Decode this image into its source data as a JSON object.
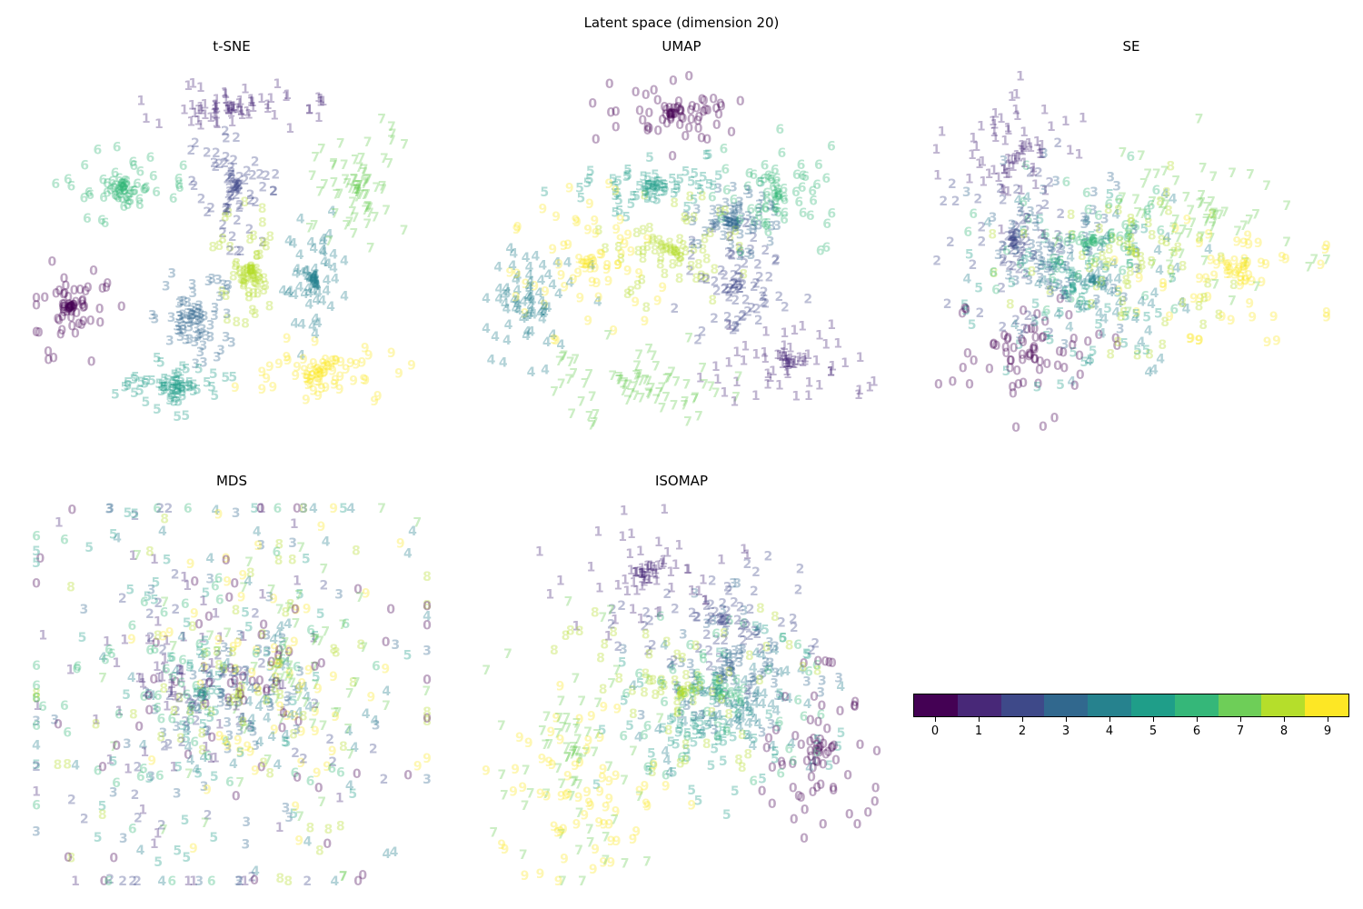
{
  "suptitle": "Latent space (dimension 20)",
  "colormap": "viridis",
  "class_colors": [
    "#440154",
    "#482878",
    "#3e4989",
    "#31688e",
    "#26828e",
    "#1f9e89",
    "#35b779",
    "#6ece58",
    "#b5de2b",
    "#fde725"
  ],
  "marker_alpha": 0.35,
  "colorbar": {
    "tick_labels": [
      "0",
      "1",
      "2",
      "3",
      "4",
      "5",
      "6",
      "7",
      "8",
      "9"
    ]
  },
  "chart_data": [
    {
      "type": "scatter",
      "title": "t-SNE",
      "xlabel": "",
      "ylabel": "",
      "axes_visible": false,
      "marker": "digit glyph",
      "clusters": [
        {
          "label": "0",
          "x": -0.82,
          "y": -0.25,
          "rx": 0.16,
          "ry": 0.2
        },
        {
          "label": "1",
          "x": 0.0,
          "y": 0.82,
          "rx": 0.3,
          "ry": 0.09
        },
        {
          "label": "2",
          "x": 0.02,
          "y": 0.4,
          "rx": 0.17,
          "ry": 0.22
        },
        {
          "label": "3",
          "x": -0.2,
          "y": -0.3,
          "rx": 0.15,
          "ry": 0.16
        },
        {
          "label": "4",
          "x": 0.42,
          "y": -0.1,
          "rx": 0.1,
          "ry": 0.28
        },
        {
          "label": "5",
          "x": -0.3,
          "y": -0.68,
          "rx": 0.24,
          "ry": 0.1
        },
        {
          "label": "6",
          "x": -0.55,
          "y": 0.4,
          "rx": 0.22,
          "ry": 0.13
        },
        {
          "label": "7",
          "x": 0.65,
          "y": 0.38,
          "rx": 0.18,
          "ry": 0.26
        },
        {
          "label": "8",
          "x": 0.1,
          "y": -0.05,
          "rx": 0.13,
          "ry": 0.23
        },
        {
          "label": "9",
          "x": 0.45,
          "y": -0.6,
          "rx": 0.3,
          "ry": 0.12
        }
      ]
    },
    {
      "type": "scatter",
      "title": "UMAP",
      "xlabel": "",
      "ylabel": "",
      "axes_visible": false,
      "marker": "digit glyph",
      "clusters": [
        {
          "label": "0",
          "x": -0.05,
          "y": 0.78,
          "rx": 0.3,
          "ry": 0.14
        },
        {
          "label": "1",
          "x": 0.55,
          "y": -0.55,
          "rx": 0.3,
          "ry": 0.16
        },
        {
          "label": "2",
          "x": 0.3,
          "y": -0.15,
          "rx": 0.22,
          "ry": 0.22
        },
        {
          "label": "3",
          "x": 0.25,
          "y": 0.2,
          "rx": 0.15,
          "ry": 0.12
        },
        {
          "label": "4",
          "x": -0.78,
          "y": -0.2,
          "rx": 0.22,
          "ry": 0.25
        },
        {
          "label": "5",
          "x": -0.15,
          "y": 0.4,
          "rx": 0.35,
          "ry": 0.12
        },
        {
          "label": "6",
          "x": 0.5,
          "y": 0.35,
          "rx": 0.25,
          "ry": 0.22
        },
        {
          "label": "7",
          "x": -0.18,
          "y": -0.65,
          "rx": 0.3,
          "ry": 0.18
        },
        {
          "label": "8",
          "x": -0.05,
          "y": 0.05,
          "rx": 0.25,
          "ry": 0.2
        },
        {
          "label": "9",
          "x": -0.48,
          "y": -0.02,
          "rx": 0.25,
          "ry": 0.28
        }
      ]
    },
    {
      "type": "scatter",
      "title": "SE",
      "xlabel": "",
      "ylabel": "",
      "axes_visible": false,
      "marker": "digit glyph",
      "clusters": [
        {
          "label": "0",
          "x": -0.55,
          "y": -0.5,
          "rx": 0.3,
          "ry": 0.25
        },
        {
          "label": "1",
          "x": -0.6,
          "y": 0.55,
          "rx": 0.25,
          "ry": 0.28
        },
        {
          "label": "2",
          "x": -0.6,
          "y": 0.1,
          "rx": 0.25,
          "ry": 0.4
        },
        {
          "label": "3",
          "x": -0.45,
          "y": 0.0,
          "rx": 0.3,
          "ry": 0.4
        },
        {
          "label": "4",
          "x": -0.2,
          "y": -0.1,
          "rx": 0.4,
          "ry": 0.35
        },
        {
          "label": "5",
          "x": -0.3,
          "y": -0.15,
          "rx": 0.35,
          "ry": 0.35
        },
        {
          "label": "6",
          "x": -0.2,
          "y": 0.1,
          "rx": 0.4,
          "ry": 0.3
        },
        {
          "label": "7",
          "x": 0.4,
          "y": 0.2,
          "rx": 0.5,
          "ry": 0.35
        },
        {
          "label": "8",
          "x": 0.0,
          "y": 0.05,
          "rx": 0.45,
          "ry": 0.35
        },
        {
          "label": "9",
          "x": 0.55,
          "y": -0.05,
          "rx": 0.4,
          "ry": 0.25
        }
      ]
    },
    {
      "type": "scatter",
      "title": "MDS",
      "xlabel": "",
      "ylabel": "",
      "axes_visible": false,
      "marker": "digit glyph",
      "clusters": [
        {
          "label": "0",
          "x": 0.05,
          "y": 0.05,
          "rx": 0.8,
          "ry": 0.8
        },
        {
          "label": "1",
          "x": -0.3,
          "y": 0.0,
          "rx": 0.6,
          "ry": 0.75
        },
        {
          "label": "2",
          "x": -0.2,
          "y": -0.05,
          "rx": 0.65,
          "ry": 0.75
        },
        {
          "label": "3",
          "x": -0.05,
          "y": 0.0,
          "rx": 0.75,
          "ry": 0.8
        },
        {
          "label": "4",
          "x": 0.1,
          "y": -0.05,
          "rx": 0.75,
          "ry": 0.8
        },
        {
          "label": "5",
          "x": -0.15,
          "y": 0.0,
          "rx": 0.75,
          "ry": 0.8
        },
        {
          "label": "6",
          "x": -0.3,
          "y": 0.1,
          "rx": 0.65,
          "ry": 0.75
        },
        {
          "label": "7",
          "x": 0.3,
          "y": 0.1,
          "rx": 0.6,
          "ry": 0.7
        },
        {
          "label": "8",
          "x": 0.05,
          "y": 0.0,
          "rx": 0.75,
          "ry": 0.8
        },
        {
          "label": "9",
          "x": 0.3,
          "y": 0.1,
          "rx": 0.55,
          "ry": 0.7
        }
      ]
    },
    {
      "type": "scatter",
      "title": "ISOMAP",
      "xlabel": "",
      "ylabel": "",
      "axes_visible": false,
      "marker": "digit glyph",
      "clusters": [
        {
          "label": "0",
          "x": 0.7,
          "y": -0.3,
          "rx": 0.22,
          "ry": 0.3
        },
        {
          "label": "1",
          "x": -0.2,
          "y": 0.65,
          "rx": 0.35,
          "ry": 0.22
        },
        {
          "label": "2",
          "x": 0.2,
          "y": 0.4,
          "rx": 0.35,
          "ry": 0.25
        },
        {
          "label": "3",
          "x": 0.25,
          "y": 0.15,
          "rx": 0.35,
          "ry": 0.28
        },
        {
          "label": "4",
          "x": 0.3,
          "y": -0.05,
          "rx": 0.35,
          "ry": 0.3
        },
        {
          "label": "5",
          "x": 0.1,
          "y": -0.15,
          "rx": 0.45,
          "ry": 0.35
        },
        {
          "label": "6",
          "x": 0.2,
          "y": 0.0,
          "rx": 0.4,
          "ry": 0.3
        },
        {
          "label": "7",
          "x": -0.55,
          "y": -0.3,
          "rx": 0.35,
          "ry": 0.5
        },
        {
          "label": "8",
          "x": 0.0,
          "y": 0.0,
          "rx": 0.45,
          "ry": 0.35
        },
        {
          "label": "9",
          "x": -0.5,
          "y": -0.5,
          "rx": 0.35,
          "ry": 0.35
        }
      ]
    }
  ]
}
